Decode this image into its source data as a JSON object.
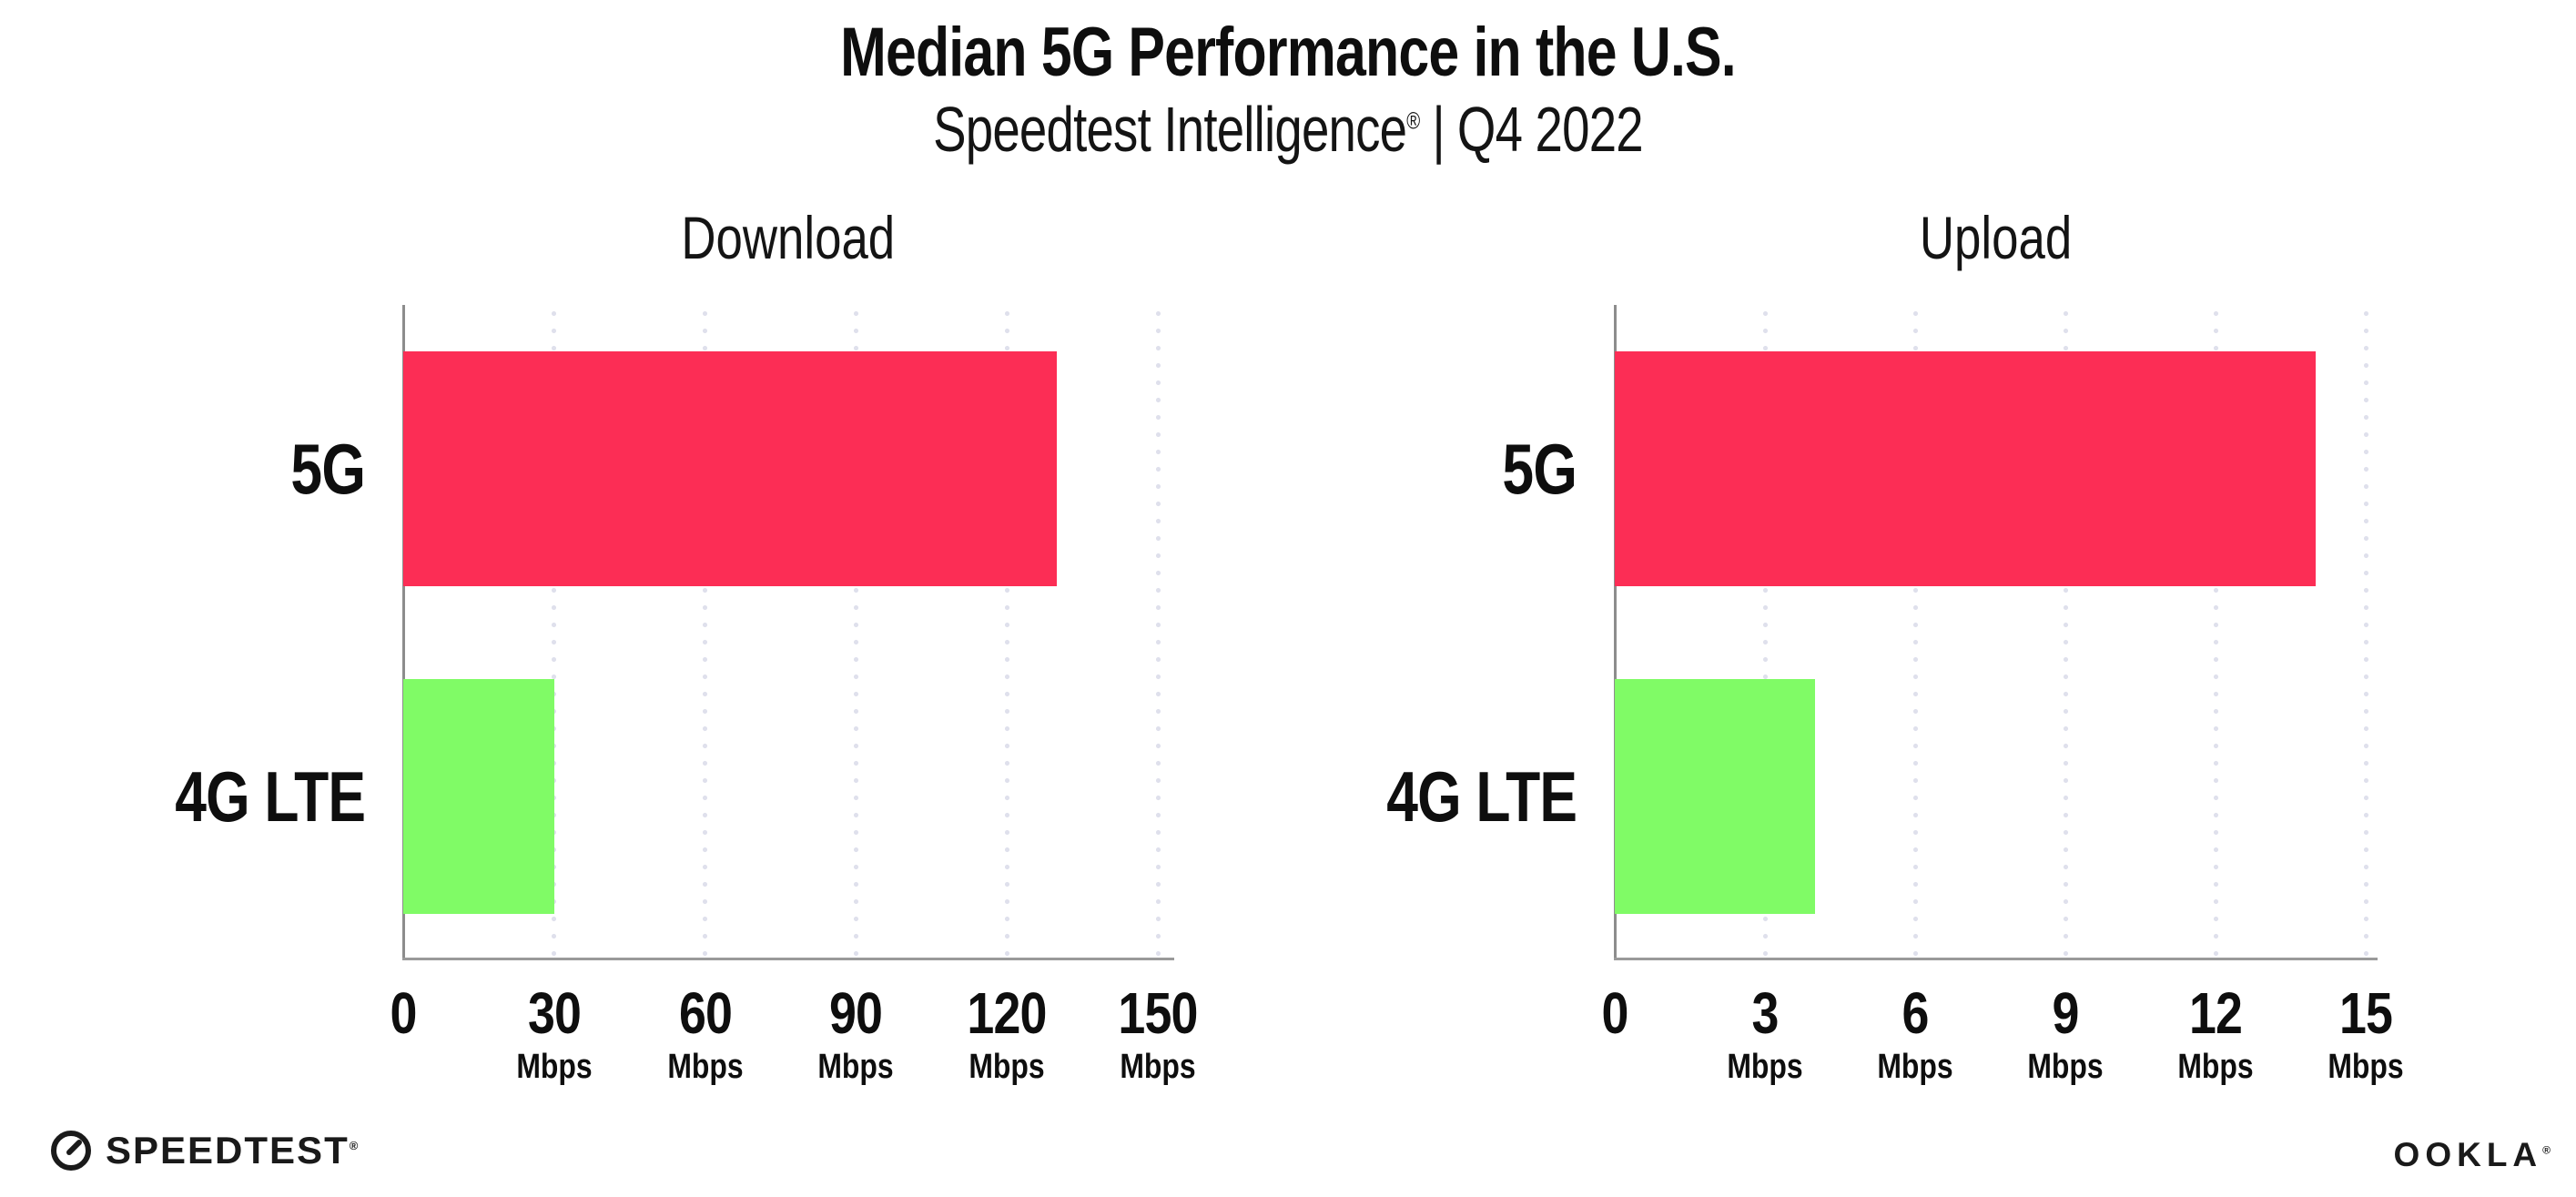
{
  "page": {
    "background": "#ffffff"
  },
  "header": {
    "title": "Median 5G Performance in the U.S.",
    "subtitle_brand": "Speedtest Intelligence",
    "subtitle_registered_mark": "®",
    "subtitle_divider": "|",
    "subtitle_period": "Q4 2022"
  },
  "colors": {
    "bar_5g": "#fc2d55",
    "bar_4g_lte": "#80fb66",
    "gridline_dots": "#dfe0ec",
    "axis_line": "#8d8d8d",
    "text": "#0e0e0e",
    "background": "#ffffff"
  },
  "chart_data": [
    {
      "type": "bar",
      "orientation": "horizontal",
      "title": "Download",
      "categories": [
        "5G",
        "4G LTE"
      ],
      "values": [
        130,
        30
      ],
      "unit": "Mbps",
      "xlim": [
        0,
        150
      ],
      "xticks": [
        0,
        30,
        60,
        90,
        120,
        150
      ],
      "bar_colors": [
        "#fc2d55",
        "#80fb66"
      ],
      "grid": "dotted-vertical",
      "legend": "none"
    },
    {
      "type": "bar",
      "orientation": "horizontal",
      "title": "Upload",
      "categories": [
        "5G",
        "4G LTE"
      ],
      "values": [
        14,
        4
      ],
      "unit": "Mbps",
      "xlim": [
        0,
        15
      ],
      "xticks": [
        0,
        3,
        6,
        9,
        12,
        15
      ],
      "bar_colors": [
        "#fc2d55",
        "#80fb66"
      ],
      "grid": "dotted-vertical",
      "legend": "none"
    }
  ],
  "footer": {
    "speedtest_wordmark": "SPEEDTEST",
    "speedtest_registered_mark": "®",
    "ookla_wordmark": "OOKLA",
    "ookla_registered_mark": "®"
  }
}
